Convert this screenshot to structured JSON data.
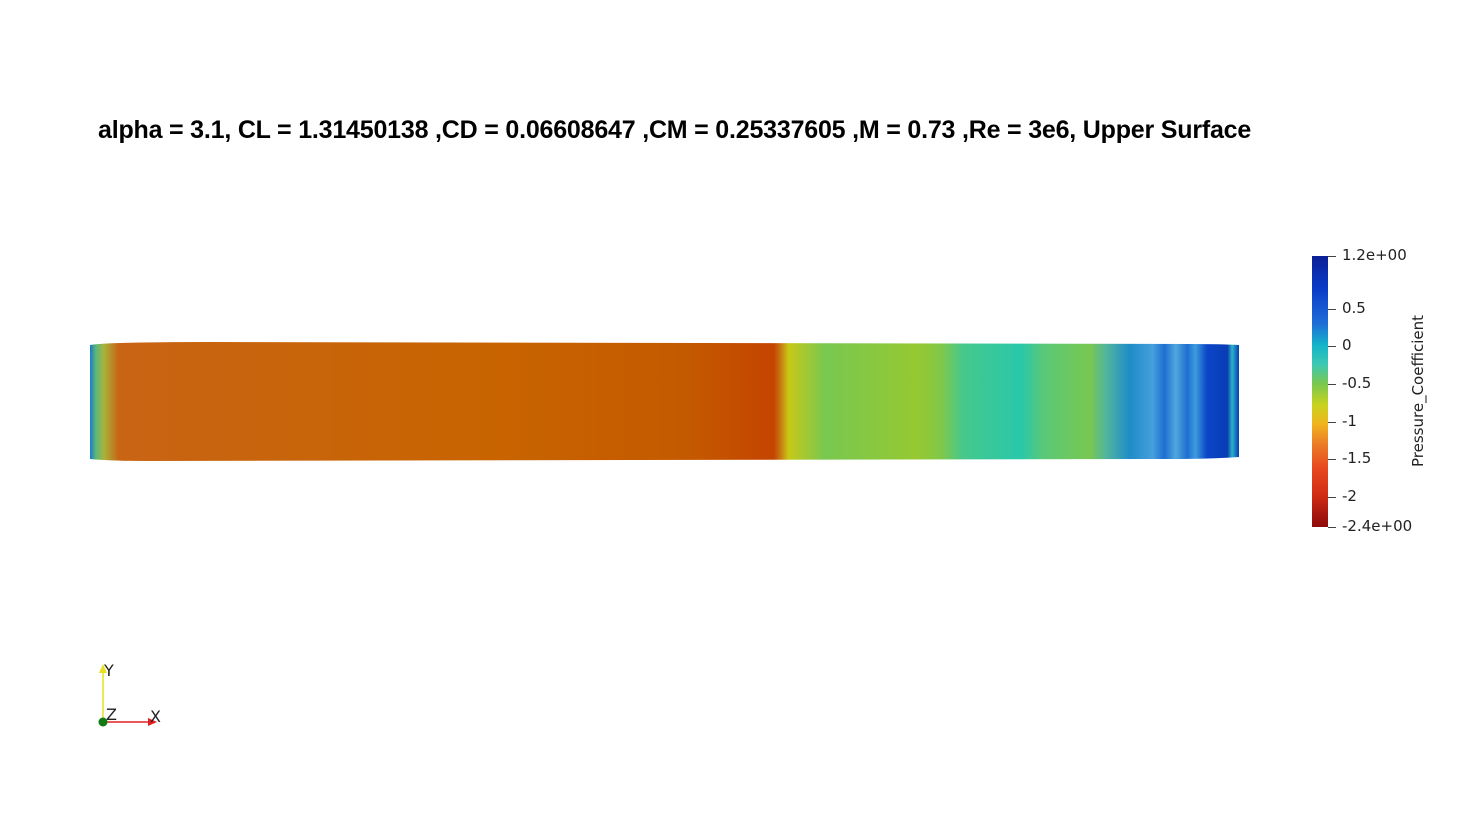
{
  "title": "alpha = 3.1, CL = 1.31450138 ,CD = 0.06608647 ,CM = 0.25337605 ,M = 0.73 ,Re = 3e6, Upper Surface",
  "colorbar": {
    "label": "Pressure_Coefficient",
    "range": [
      -2.4,
      1.2
    ],
    "ticks": [
      {
        "value": 1.2,
        "label": "1.2e+00"
      },
      {
        "value": 0.5,
        "label": "0.5"
      },
      {
        "value": 0,
        "label": "0"
      },
      {
        "value": -0.5,
        "label": "-0.5"
      },
      {
        "value": -1,
        "label": "-1"
      },
      {
        "value": -1.5,
        "label": "-1.5"
      },
      {
        "value": -2,
        "label": "-2"
      },
      {
        "value": -2.4,
        "label": "-2.4e+00"
      }
    ]
  },
  "axes": {
    "x_label": "X",
    "y_label": "Y",
    "z_label": "Z"
  },
  "colors": {
    "x_axis": "#e02020",
    "y_axis": "#e8e020",
    "z_axis": "#127a12"
  }
}
